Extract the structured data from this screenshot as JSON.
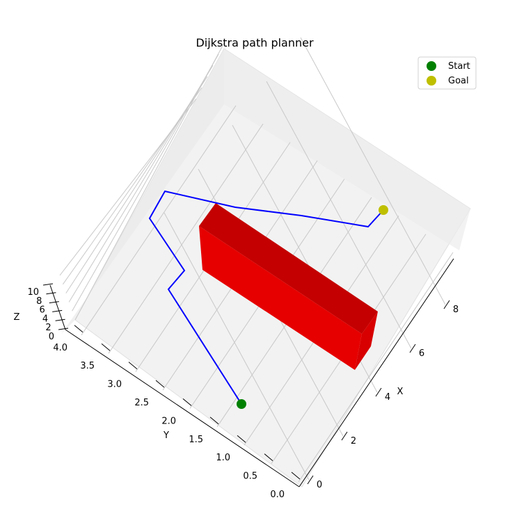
{
  "chart_data": {
    "type": "line",
    "title": "Dijkstra path planner",
    "xlabel": "X",
    "ylabel": "Y",
    "zlabel": "Z",
    "x_ticks": [
      "0",
      "2",
      "4",
      "6",
      "8"
    ],
    "y_ticks": [
      "0.0",
      "0.5",
      "1.0",
      "1.5",
      "2.0",
      "2.5",
      "3.0",
      "3.5",
      "4.0"
    ],
    "z_ticks": [
      "0",
      "2",
      "4",
      "6",
      "8",
      "10"
    ],
    "grid": true,
    "legend_position": "top-right",
    "legend": [
      {
        "name": "Start",
        "color": "#008000"
      },
      {
        "name": "Goal",
        "color": "#bfbf00"
      }
    ],
    "path_color": "#0000ff",
    "obstacle_color": "#ff0000"
  }
}
